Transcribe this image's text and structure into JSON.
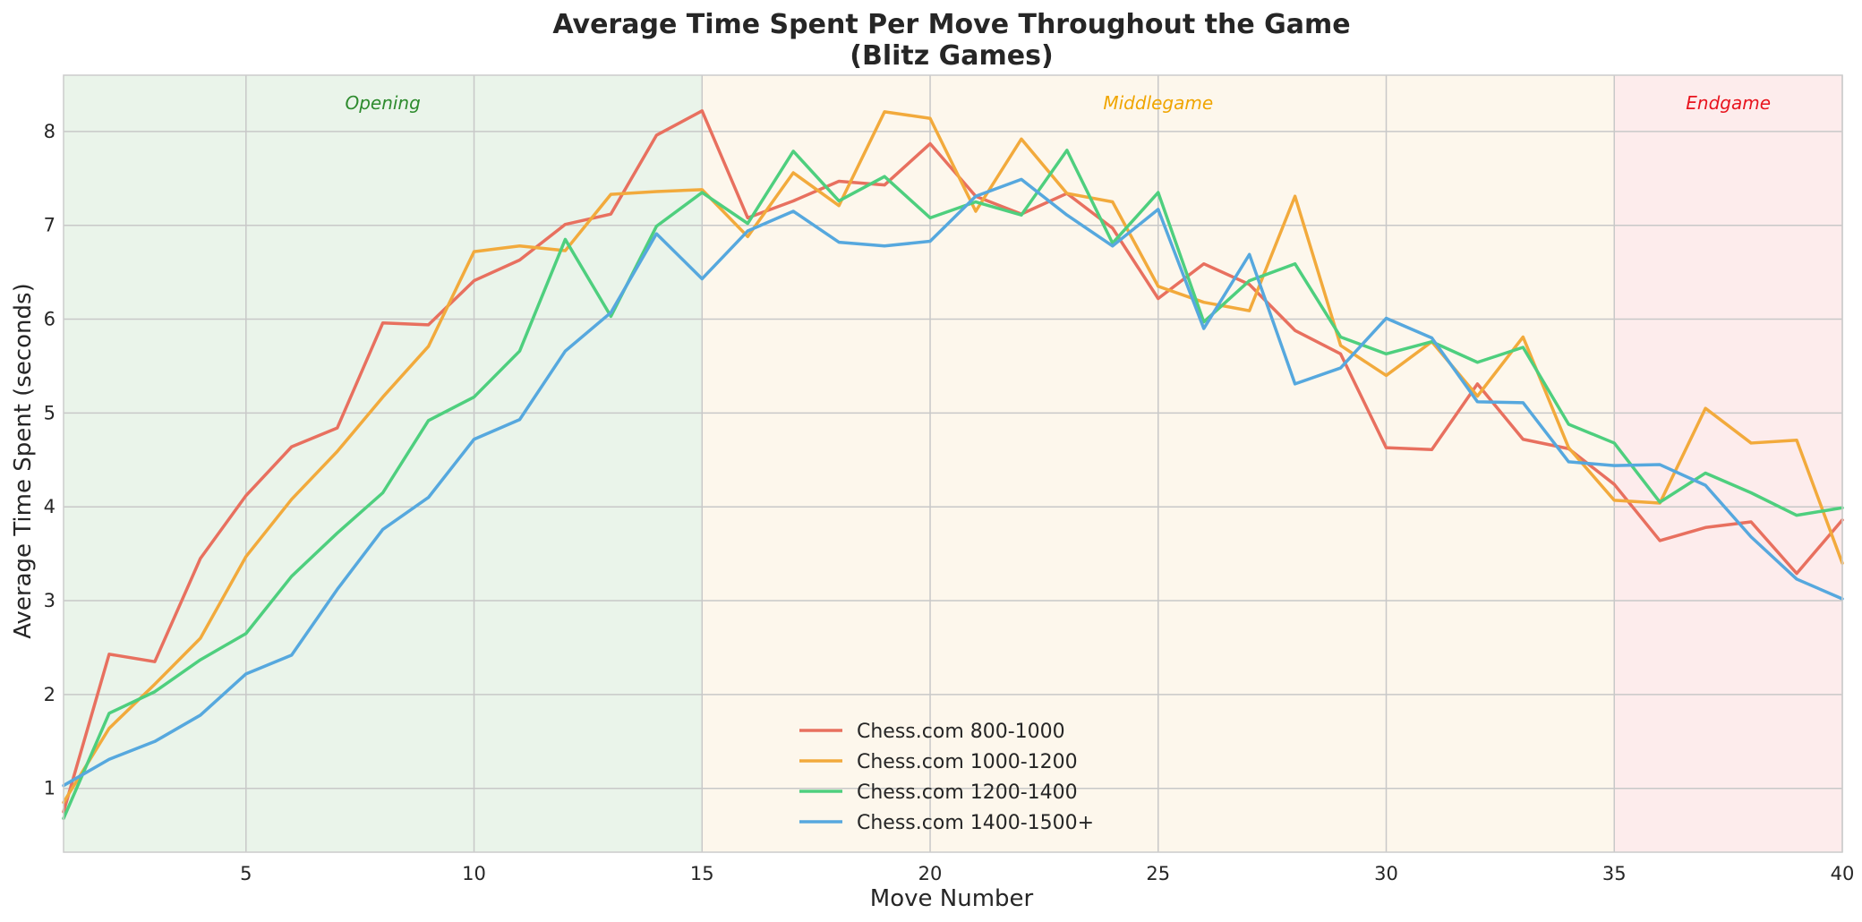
{
  "chart_data": {
    "type": "line",
    "title": "Average Time Spent Per Move Throughout the Game",
    "subtitle": "(Blitz Games)",
    "xlabel": "Move Number",
    "ylabel": "Average Time Spent (seconds)",
    "xlim": [
      1,
      40
    ],
    "ylim": [
      0.32,
      8.6
    ],
    "xticks": [
      5,
      10,
      15,
      20,
      25,
      30,
      35,
      40
    ],
    "yticks": [
      1,
      2,
      3,
      4,
      5,
      6,
      7,
      8
    ],
    "grid": true,
    "legend_position": "bottom-center",
    "phases": [
      {
        "label": "Opening",
        "start": 1,
        "end": 15,
        "color": "#2e8b2e",
        "fill": "#eaf4ea"
      },
      {
        "label": "Middlegame",
        "start": 15,
        "end": 35,
        "color": "#f0a500",
        "fill": "#fdf7ec"
      },
      {
        "label": "Endgame",
        "start": 35,
        "end": 40,
        "color": "#e8141e",
        "fill": "#fdecec"
      }
    ],
    "x": [
      1,
      2,
      3,
      4,
      5,
      6,
      7,
      8,
      9,
      10,
      11,
      12,
      13,
      14,
      15,
      16,
      17,
      18,
      19,
      20,
      21,
      22,
      23,
      24,
      25,
      26,
      27,
      28,
      29,
      30,
      31,
      32,
      33,
      34,
      35,
      36,
      37,
      38,
      39,
      40
    ],
    "series": [
      {
        "name": "Chess.com 800-1000",
        "color": "#e8705f",
        "values": [
          0.75,
          2.43,
          2.35,
          3.45,
          4.12,
          4.64,
          4.84,
          5.96,
          5.94,
          6.41,
          6.63,
          7.01,
          7.12,
          7.96,
          8.22,
          7.08,
          7.26,
          7.47,
          7.43,
          7.87,
          7.31,
          7.12,
          7.34,
          6.97,
          6.22,
          6.59,
          6.37,
          5.88,
          5.63,
          4.63,
          4.61,
          5.31,
          4.72,
          4.62,
          4.24,
          3.64,
          3.78,
          3.84,
          3.29,
          3.86
        ]
      },
      {
        "name": "Chess.com 1000-1200",
        "color": "#f2aa3c",
        "values": [
          0.85,
          1.64,
          2.11,
          2.6,
          3.47,
          4.08,
          4.59,
          5.17,
          5.71,
          6.72,
          6.78,
          6.73,
          7.33,
          7.36,
          7.38,
          6.88,
          7.56,
          7.21,
          8.21,
          8.14,
          7.15,
          7.92,
          7.34,
          7.25,
          6.35,
          6.18,
          6.09,
          7.31,
          5.72,
          5.4,
          5.76,
          5.18,
          5.81,
          4.63,
          4.07,
          4.04,
          5.05,
          4.68,
          4.71,
          3.4
        ]
      },
      {
        "name": "Chess.com 1200-1400",
        "color": "#4ecf7e",
        "values": [
          0.68,
          1.8,
          2.03,
          2.37,
          2.65,
          3.26,
          3.72,
          4.15,
          4.92,
          5.17,
          5.66,
          6.85,
          6.03,
          6.99,
          7.35,
          7.02,
          7.79,
          7.26,
          7.52,
          7.08,
          7.25,
          7.11,
          7.8,
          6.81,
          7.35,
          5.97,
          6.41,
          6.59,
          5.81,
          5.63,
          5.76,
          5.54,
          5.7,
          4.88,
          4.68,
          4.05,
          4.36,
          4.15,
          3.91,
          3.99
        ]
      },
      {
        "name": "Chess.com 1400-1500+",
        "color": "#56a8de",
        "values": [
          1.03,
          1.31,
          1.5,
          1.78,
          2.22,
          2.42,
          3.12,
          3.76,
          4.1,
          4.72,
          4.93,
          5.66,
          6.07,
          6.91,
          6.43,
          6.94,
          7.15,
          6.82,
          6.78,
          6.83,
          7.31,
          7.49,
          7.11,
          6.78,
          7.17,
          5.9,
          6.69,
          5.31,
          5.48,
          6.01,
          5.8,
          5.12,
          5.11,
          4.48,
          4.44,
          4.45,
          4.23,
          3.68,
          3.23,
          3.02
        ]
      }
    ]
  }
}
